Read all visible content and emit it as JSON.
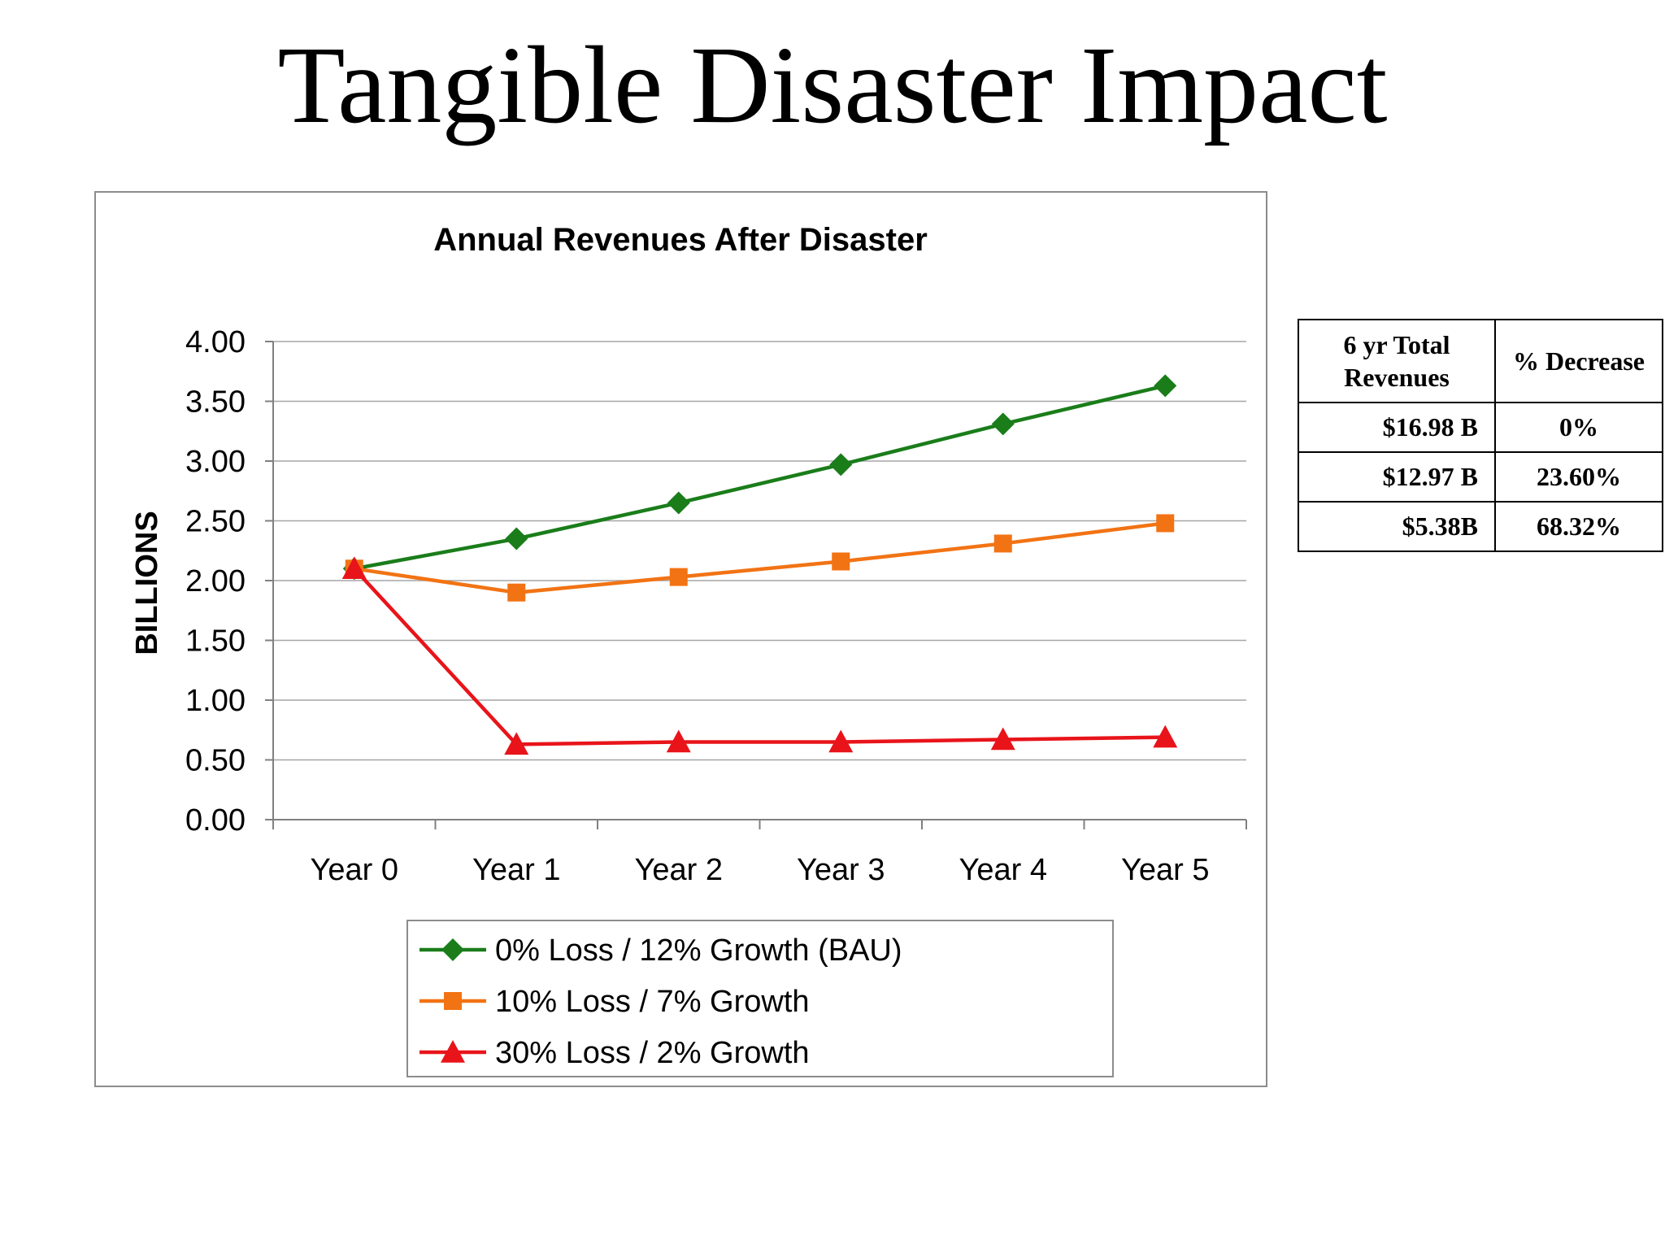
{
  "slide": {
    "title": "Tangible Disaster Impact"
  },
  "colors": {
    "bau": "#1a7d1a",
    "mid": "#f27314",
    "severe": "#e8141a",
    "grid": "#a6a6a6",
    "axis": "#808080"
  },
  "chart_data": {
    "type": "line",
    "title": "Annual Revenues After Disaster",
    "xlabel": "",
    "ylabel": "BILLIONS",
    "categories": [
      "Year 0",
      "Year 1",
      "Year 2",
      "Year 3",
      "Year 4",
      "Year 5"
    ],
    "ylim": [
      0,
      4
    ],
    "yticks": [
      "0.00",
      "0.50",
      "1.00",
      "1.50",
      "2.00",
      "2.50",
      "3.00",
      "3.50",
      "4.00"
    ],
    "grid": true,
    "legend_position": "bottom",
    "series": [
      {
        "name": "0% Loss / 12% Growth (BAU)",
        "marker": "diamond",
        "color": "#1a7d1a",
        "values": [
          2.1,
          2.35,
          2.65,
          2.97,
          3.31,
          3.63
        ]
      },
      {
        "name": "10% Loss / 7% Growth",
        "marker": "square",
        "color": "#f27314",
        "values": [
          2.1,
          1.9,
          2.03,
          2.16,
          2.31,
          2.48
        ]
      },
      {
        "name": "30% Loss / 2% Growth",
        "marker": "triangle",
        "color": "#e8141a",
        "values": [
          2.1,
          0.63,
          0.65,
          0.65,
          0.67,
          0.69
        ]
      }
    ]
  },
  "summary_table": {
    "headers": {
      "total": "6 yr Total Revenues",
      "decrease": "% Decrease"
    },
    "rows": [
      {
        "total": "$16.98 B",
        "decrease": "0%"
      },
      {
        "total": "$12.97 B",
        "decrease": "23.60%"
      },
      {
        "total": "$5.38B",
        "decrease": "68.32%"
      }
    ]
  }
}
